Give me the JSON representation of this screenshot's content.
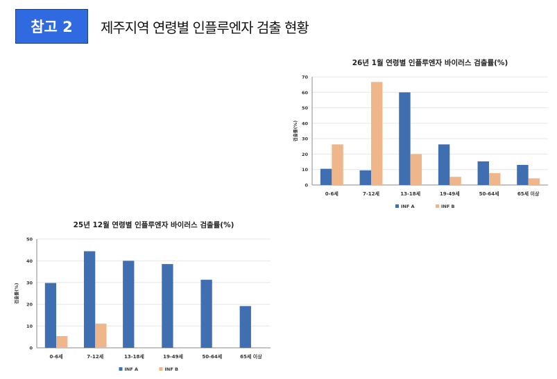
{
  "header": {
    "badge": "참고 2",
    "title": "제주지역 연령별 인플루엔자 검출 현황"
  },
  "colors": {
    "INF A": "#3f6fb0",
    "INF B": "#eeb68a",
    "badge": "#2f6ae0"
  },
  "chart_data": [
    {
      "type": "bar",
      "title": "26년 1월 연령별 인플루엔자 바이러스 검출률(%)",
      "ylabel": "검출률(%)",
      "xlabel": "",
      "ylim": [
        0,
        70
      ],
      "yticks": [
        0,
        10,
        20,
        30,
        40,
        50,
        60,
        70
      ],
      "grid": true,
      "legend": "bottom",
      "categories": [
        "0-6세",
        "7-12세",
        "13-18세",
        "19-49세",
        "50-64세",
        "65세 이상"
      ],
      "series": [
        {
          "name": "INF A",
          "values": [
            10.5,
            9.5,
            60,
            26.3,
            15.3,
            13
          ]
        },
        {
          "name": "INF B",
          "values": [
            26.3,
            66.7,
            20,
            5.3,
            7.7,
            4.3
          ]
        }
      ]
    },
    {
      "type": "bar",
      "title": "25년 12월 연령별 인플루엔자 바이러스 검출률(%)",
      "ylabel": "검출률(%)",
      "xlabel": "",
      "ylim": [
        0,
        50
      ],
      "yticks": [
        0,
        10,
        20,
        30,
        40,
        50
      ],
      "grid": true,
      "legend": "bottom",
      "categories": [
        "0-6세",
        "7-12세",
        "13-18세",
        "19-49세",
        "50-64세",
        "65세 이상"
      ],
      "series": [
        {
          "name": "INF A",
          "values": [
            29.8,
            44.4,
            40,
            38.5,
            31.3,
            19.2
          ]
        },
        {
          "name": "INF B",
          "values": [
            5.4,
            11.1,
            0,
            0,
            0,
            0
          ]
        }
      ]
    }
  ]
}
